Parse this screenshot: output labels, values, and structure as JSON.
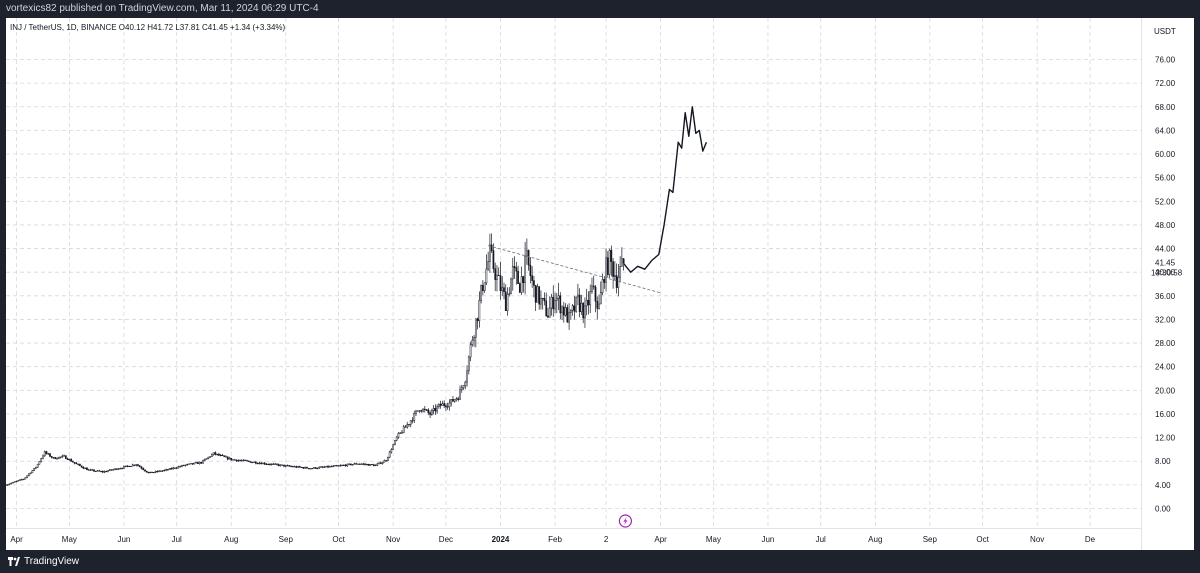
{
  "header": {
    "published_text": "vortexics82 published on TradingView.com, Mar 11, 2024 06:29 UTC-4"
  },
  "legend": {
    "symbol_text": "INJ / TetherUS, 1D, BINANCE",
    "open": "O40.12",
    "high": "H41.72",
    "low": "L37.81",
    "close": "C41.45",
    "change": "+1.34 (+3.34%)"
  },
  "price_axis": {
    "currency": "USDT",
    "current_price_label": "41.45",
    "countdown_label": "13:30:58"
  },
  "footer": {
    "brand": "TradingView"
  },
  "chart_data": {
    "type": "candlestick",
    "currency": "USDT",
    "ylim": [
      -2,
      80
    ],
    "yticks": [
      0,
      4,
      8,
      12,
      16,
      20,
      24,
      28,
      32,
      36,
      40,
      44,
      48,
      52,
      56,
      60,
      64,
      68,
      72,
      76
    ],
    "ytick_labels": [
      "0.00",
      "4.00",
      "8.00",
      "12.00",
      "16.00",
      "20.00",
      "24.00",
      "28.00",
      "32.00",
      "36.00",
      "40.00",
      "44.00",
      "48.00",
      "52.00",
      "56.00",
      "60.00",
      "64.00",
      "68.00",
      "72.00",
      "76.00"
    ],
    "xlim": [
      "2023-03-26",
      "2024-12-30"
    ],
    "xticks": [
      {
        "date": "2023-04-01",
        "label": "Apr"
      },
      {
        "date": "2023-05-01",
        "label": "May"
      },
      {
        "date": "2023-06-01",
        "label": "Jun"
      },
      {
        "date": "2023-07-01",
        "label": "Jul"
      },
      {
        "date": "2023-08-01",
        "label": "Aug"
      },
      {
        "date": "2023-09-01",
        "label": "Sep"
      },
      {
        "date": "2023-10-01",
        "label": "Oct"
      },
      {
        "date": "2023-11-01",
        "label": "Nov"
      },
      {
        "date": "2023-12-01",
        "label": "Dec"
      },
      {
        "date": "2024-01-01",
        "label": "2024",
        "bold": true
      },
      {
        "date": "2024-02-01",
        "label": "Feb"
      },
      {
        "date": "2024-03-01",
        "label": "2"
      },
      {
        "date": "2024-04-01",
        "label": "Apr"
      },
      {
        "date": "2024-05-01",
        "label": "May"
      },
      {
        "date": "2024-06-01",
        "label": "Jun"
      },
      {
        "date": "2024-07-01",
        "label": "Jul"
      },
      {
        "date": "2024-08-01",
        "label": "Aug"
      },
      {
        "date": "2024-09-01",
        "label": "Sep"
      },
      {
        "date": "2024-10-01",
        "label": "Oct"
      },
      {
        "date": "2024-11-01",
        "label": "Nov"
      },
      {
        "date": "2024-12-01",
        "label": "De"
      }
    ],
    "candle_path_daily_close": [
      {
        "date": "2023-03-26",
        "close": 4.0
      },
      {
        "date": "2023-04-05",
        "close": 5.0
      },
      {
        "date": "2023-04-12",
        "close": 7.0
      },
      {
        "date": "2023-04-17",
        "close": 9.5
      },
      {
        "date": "2023-04-22",
        "close": 8.5
      },
      {
        "date": "2023-04-28",
        "close": 8.8
      },
      {
        "date": "2023-05-05",
        "close": 7.5
      },
      {
        "date": "2023-05-12",
        "close": 6.5
      },
      {
        "date": "2023-05-20",
        "close": 6.2
      },
      {
        "date": "2023-06-01",
        "close": 7.0
      },
      {
        "date": "2023-06-08",
        "close": 7.5
      },
      {
        "date": "2023-06-15",
        "close": 6.0
      },
      {
        "date": "2023-06-25",
        "close": 6.5
      },
      {
        "date": "2023-07-05",
        "close": 7.3
      },
      {
        "date": "2023-07-15",
        "close": 7.8
      },
      {
        "date": "2023-07-22",
        "close": 9.3
      },
      {
        "date": "2023-08-01",
        "close": 8.3
      },
      {
        "date": "2023-08-15",
        "close": 7.8
      },
      {
        "date": "2023-09-01",
        "close": 7.2
      },
      {
        "date": "2023-09-15",
        "close": 6.8
      },
      {
        "date": "2023-10-01",
        "close": 7.2
      },
      {
        "date": "2023-10-12",
        "close": 7.6
      },
      {
        "date": "2023-10-22",
        "close": 7.3
      },
      {
        "date": "2023-10-28",
        "close": 8.2
      },
      {
        "date": "2023-11-03",
        "close": 12.0
      },
      {
        "date": "2023-11-10",
        "close": 14.5
      },
      {
        "date": "2023-11-16",
        "close": 17.0
      },
      {
        "date": "2023-11-22",
        "close": 16.0
      },
      {
        "date": "2023-11-28",
        "close": 17.5
      },
      {
        "date": "2023-12-03",
        "close": 17.8
      },
      {
        "date": "2023-12-08",
        "close": 19.0
      },
      {
        "date": "2023-12-12",
        "close": 22.0
      },
      {
        "date": "2023-12-16",
        "close": 29.0
      },
      {
        "date": "2023-12-19",
        "close": 33.0
      },
      {
        "date": "2023-12-22",
        "close": 38.0
      },
      {
        "date": "2023-12-26",
        "close": 43.0
      },
      {
        "date": "2023-12-30",
        "close": 39.0
      },
      {
        "date": "2024-01-04",
        "close": 35.0
      },
      {
        "date": "2024-01-08",
        "close": 40.0
      },
      {
        "date": "2024-01-12",
        "close": 38.0
      },
      {
        "date": "2024-01-16",
        "close": 42.0
      },
      {
        "date": "2024-01-20",
        "close": 37.0
      },
      {
        "date": "2024-01-24",
        "close": 35.0
      },
      {
        "date": "2024-01-28",
        "close": 33.0
      },
      {
        "date": "2024-02-01",
        "close": 36.0
      },
      {
        "date": "2024-02-05",
        "close": 34.0
      },
      {
        "date": "2024-02-09",
        "close": 32.0
      },
      {
        "date": "2024-02-14",
        "close": 35.0
      },
      {
        "date": "2024-02-18",
        "close": 33.0
      },
      {
        "date": "2024-02-22",
        "close": 37.0
      },
      {
        "date": "2024-02-26",
        "close": 34.0
      },
      {
        "date": "2024-02-29",
        "close": 40.0
      },
      {
        "date": "2024-03-03",
        "close": 42.0
      },
      {
        "date": "2024-03-07",
        "close": 39.0
      },
      {
        "date": "2024-03-11",
        "close": 41.45
      }
    ],
    "projection_line": [
      {
        "date": "2024-03-11",
        "value": 41.45
      },
      {
        "date": "2024-03-15",
        "value": 40.0
      },
      {
        "date": "2024-03-19",
        "value": 41.0
      },
      {
        "date": "2024-03-23",
        "value": 40.5
      },
      {
        "date": "2024-03-27",
        "value": 42.0
      },
      {
        "date": "2024-03-31",
        "value": 43.0
      },
      {
        "date": "2024-04-03",
        "value": 48.0
      },
      {
        "date": "2024-04-06",
        "value": 54.0
      },
      {
        "date": "2024-04-08",
        "value": 53.5
      },
      {
        "date": "2024-04-11",
        "value": 62.0
      },
      {
        "date": "2024-04-13",
        "value": 61.0
      },
      {
        "date": "2024-04-15",
        "value": 67.0
      },
      {
        "date": "2024-04-17",
        "value": 63.0
      },
      {
        "date": "2024-04-19",
        "value": 68.0
      },
      {
        "date": "2024-04-21",
        "value": 63.5
      },
      {
        "date": "2024-04-23",
        "value": 64.0
      },
      {
        "date": "2024-04-25",
        "value": 60.5
      },
      {
        "date": "2024-04-27",
        "value": 62.0
      }
    ],
    "trend_line": [
      {
        "date": "2023-12-25",
        "value": 44.5
      },
      {
        "date": "2024-04-01",
        "value": 36.5
      }
    ]
  }
}
